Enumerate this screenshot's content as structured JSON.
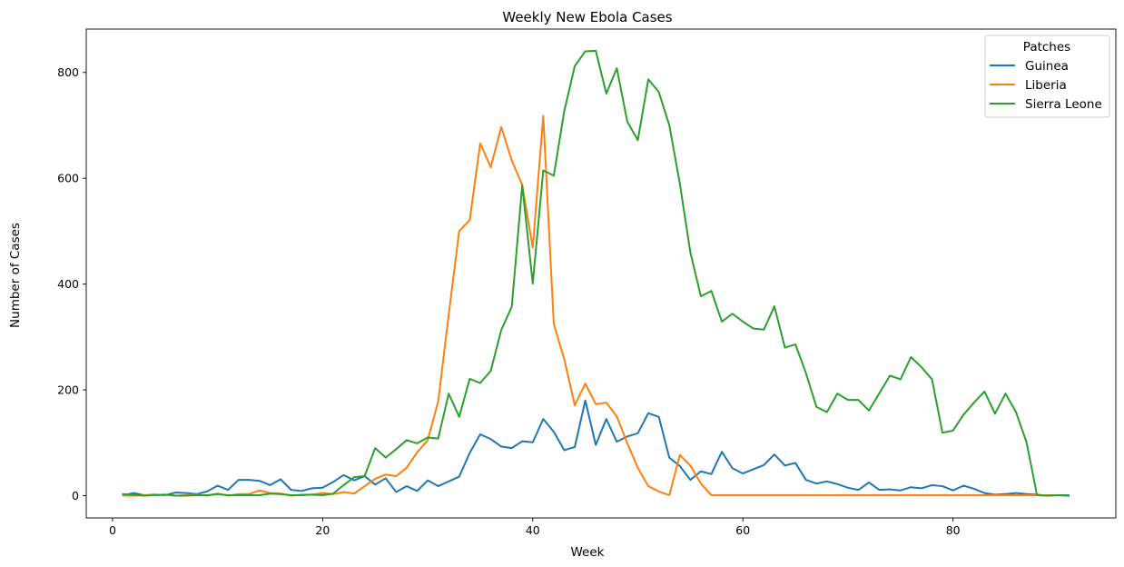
{
  "chart_data": {
    "type": "line",
    "title": "Weekly New Ebola Cases",
    "xlabel": "Week",
    "ylabel": "Number of Cases",
    "xlim": [
      -2.5,
      95.5
    ],
    "ylim": [
      -42,
      882
    ],
    "xticks": [
      0,
      20,
      40,
      60,
      80
    ],
    "yticks": [
      0,
      200,
      400,
      600,
      800
    ],
    "grid": false,
    "legend": {
      "title": "Patches",
      "placement": "top-right"
    },
    "x": [
      1,
      2,
      3,
      4,
      5,
      6,
      7,
      8,
      9,
      10,
      11,
      12,
      13,
      14,
      15,
      16,
      17,
      18,
      19,
      20,
      21,
      22,
      23,
      24,
      25,
      26,
      27,
      28,
      29,
      30,
      31,
      32,
      33,
      34,
      35,
      36,
      37,
      38,
      39,
      40,
      41,
      42,
      43,
      44,
      45,
      46,
      47,
      48,
      49,
      50,
      51,
      52,
      53,
      54,
      55,
      56,
      57,
      58,
      59,
      60,
      61,
      62,
      63,
      64,
      65,
      66,
      67,
      68,
      69,
      70,
      71,
      72,
      73,
      74,
      75,
      76,
      77,
      78,
      79,
      80,
      81,
      82,
      83,
      84,
      85,
      86,
      87,
      88,
      89,
      90,
      91
    ],
    "series": [
      {
        "name": "Guinea",
        "color": "#1f77b4",
        "values": [
          1,
          5,
          1,
          2,
          1,
          6,
          5,
          3,
          8,
          19,
          11,
          30,
          30,
          28,
          20,
          31,
          11,
          9,
          14,
          15,
          26,
          39,
          29,
          37,
          21,
          33,
          7,
          18,
          9,
          29,
          18,
          27,
          36,
          81,
          116,
          107,
          93,
          90,
          103,
          101,
          145,
          121,
          86,
          92,
          180,
          96,
          145,
          102,
          112,
          118,
          156,
          149,
          72,
          56,
          30,
          46,
          41,
          83,
          52,
          42,
          50,
          58,
          78,
          57,
          62,
          30,
          23,
          27,
          22,
          15,
          11,
          25,
          11,
          12,
          10,
          16,
          14,
          20,
          18,
          10,
          19,
          13,
          5,
          2,
          3,
          5,
          3,
          2,
          0,
          1,
          0
        ]
      },
      {
        "name": "Liberia",
        "color": "#ff7f0e",
        "values": [
          0,
          0,
          1,
          1,
          2,
          0,
          1,
          2,
          0,
          4,
          0,
          3,
          3,
          10,
          5,
          4,
          0,
          2,
          2,
          5,
          3,
          7,
          4,
          18,
          32,
          40,
          37,
          53,
          82,
          105,
          178,
          342,
          500,
          521,
          666,
          621,
          697,
          634,
          587,
          469,
          718,
          325,
          258,
          171,
          212,
          173,
          176,
          150,
          99,
          53,
          18,
          8,
          1,
          77,
          57,
          23,
          1,
          1,
          1,
          1,
          1,
          1,
          1,
          1,
          1,
          1,
          1,
          1,
          1,
          1,
          1,
          1,
          1,
          1,
          1,
          1,
          1,
          1,
          1,
          1,
          1,
          1,
          1,
          1,
          1,
          1,
          1,
          1,
          1,
          1,
          1
        ]
      },
      {
        "name": "Sierra Leone",
        "color": "#2ca02c",
        "values": [
          3,
          2,
          0,
          1,
          2,
          0,
          0,
          1,
          1,
          3,
          1,
          1,
          1,
          1,
          4,
          3,
          1,
          1,
          2,
          1,
          4,
          20,
          35,
          37,
          90,
          72,
          88,
          105,
          99,
          110,
          108,
          193,
          149,
          221,
          213,
          236,
          313,
          357,
          587,
          401,
          615,
          605,
          727,
          812,
          840,
          841,
          760,
          808,
          707,
          672,
          787,
          763,
          700,
          590,
          460,
          377,
          387,
          329,
          344,
          329,
          316,
          314,
          358,
          280,
          286,
          232,
          168,
          158,
          193,
          181,
          181,
          161,
          194,
          227,
          220,
          262,
          243,
          220,
          119,
          123,
          153,
          176,
          197,
          155,
          193,
          158,
          101,
          1,
          0,
          1,
          1
        ]
      }
    ]
  }
}
